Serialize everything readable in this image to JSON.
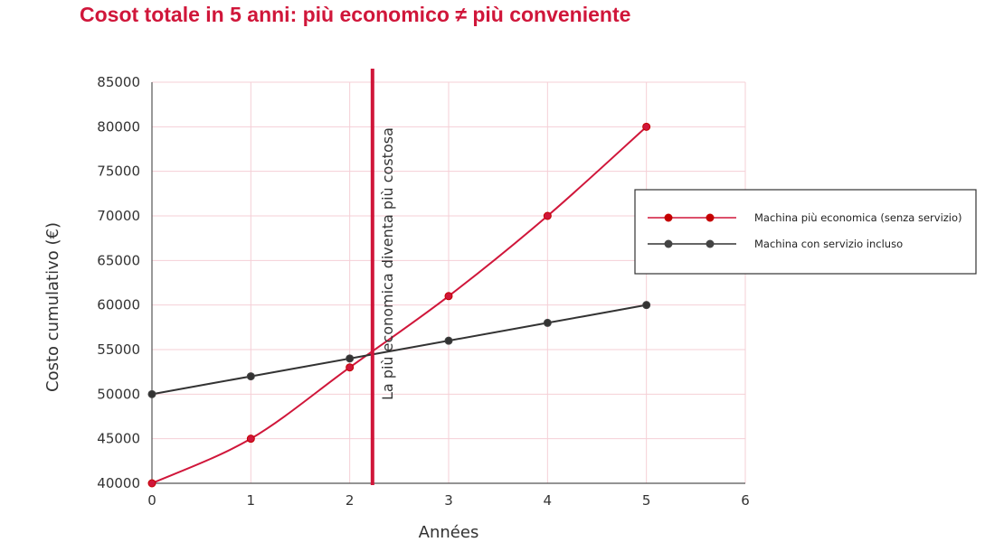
{
  "chart_data": {
    "type": "line",
    "title": "Cosot totale in 5 anni: più economico ≠ più conveniente",
    "xlabel": "Années",
    "ylabel": "Costo cumulativo (€)",
    "xlim": [
      0,
      6
    ],
    "ylim": [
      40000,
      85000
    ],
    "xticks": [
      "0",
      "1",
      "2",
      "3",
      "4",
      "5",
      "6"
    ],
    "yticks": [
      "40000",
      "45000",
      "50000",
      "55000",
      "60000",
      "65000",
      "70000",
      "75000",
      "80000",
      "85000"
    ],
    "grid": true,
    "legend_position": "right",
    "series": [
      {
        "name": "Machina più economica (senza servizio)",
        "color": "#d0163a",
        "marker_color": "#c40000",
        "x": [
          0,
          1,
          2,
          3,
          4,
          5
        ],
        "y": [
          40000,
          45000,
          53000,
          61000,
          70000,
          80000
        ]
      },
      {
        "name": "Machina con servizio incluso",
        "color": "#333333",
        "marker_color": "#444444",
        "x": [
          0,
          1,
          2,
          3,
          4,
          5
        ],
        "y": [
          50000,
          52000,
          54000,
          56000,
          58000,
          60000
        ]
      }
    ],
    "annotation": {
      "x": 2.23,
      "text": "La più economica diventa più costosa",
      "color": "#d0163a"
    }
  }
}
